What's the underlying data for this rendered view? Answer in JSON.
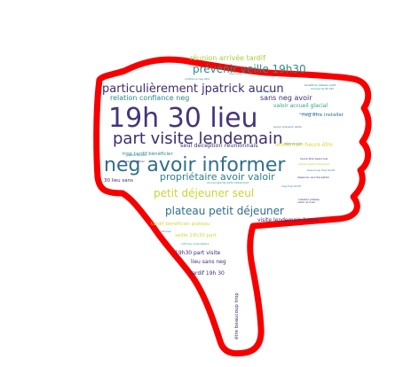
{
  "palette": {
    "outline": "#f70000",
    "dark_purple": "#3f2d6e",
    "indigo": "#45357a",
    "blue": "#34618d",
    "teal": "#2a7f8e",
    "green": "#31a37a",
    "lime": "#b4d233",
    "yellow": "#e3d330"
  },
  "words": [
    {
      "text": "19h 30 lieu",
      "color": "#45357a"
    },
    {
      "text": "neg avoir informer",
      "color": "#2f6f8c"
    },
    {
      "text": "part visite lendemain",
      "color": "#3f2d6e"
    },
    {
      "text": "particulièrement jpatrick aucun",
      "color": "#3f2d6e"
    },
    {
      "text": "prévenir veille 19h30",
      "color": "#2a8a8a"
    },
    {
      "text": "plateau petit déjeuner",
      "color": "#2d6e8d"
    },
    {
      "text": "petit déjeuner seul",
      "color": "#c7d537"
    },
    {
      "text": "propriétaire avoir valoir",
      "color": "#2a7f8e"
    },
    {
      "text": "réunion arrivée tardif",
      "color": "#a4cf3c"
    },
    {
      "text": "relation confiance neg",
      "color": "#2a8a8a"
    },
    {
      "text": "sans neg avoir",
      "color": "#3f2d6e"
    },
    {
      "text": "seul déception réunionnais",
      "color": "#3f2d6e"
    },
    {
      "text": "valoir accueil glacial",
      "color": "#31a37a"
    },
    {
      "text": "neg être installer",
      "color": "#2d6e8d"
    },
    {
      "text": "visite lendemain heure",
      "color": "#3f2d6e"
    },
    {
      "text": "trop tardif bénéficier",
      "color": "#2a8a8a"
    },
    {
      "text": "lendemain heure être",
      "color": "#e3d330"
    },
    {
      "text": "30 lieu sans",
      "color": "#3f2d6e"
    },
    {
      "text": "tardif bénéficier plateau",
      "color": "#d3d83a"
    },
    {
      "text": "19h30 part visite",
      "color": "#3f2d6e"
    },
    {
      "text": "lieu sans neg",
      "color": "#3f2d6e"
    },
    {
      "text": "veille 19h30 part",
      "color": "#d3d83a"
    },
    {
      "text": "tardif 19h 30",
      "color": "#3f2d6e"
    },
    {
      "text": "être beaucoup trop",
      "color": "#3f2d6e"
    },
    {
      "text": "confiance neg être",
      "color": "#2a8a8a"
    },
    {
      "text": "aucun prévenir veille",
      "color": "#2d6e8d"
    },
    {
      "text": "beaucoup trop tardif",
      "color": "#2a8a8a"
    },
    {
      "text": "heure être beaucoup",
      "color": "#3f2d6e"
    },
    {
      "text": "neg avoir",
      "color": "#31a37a"
    },
    {
      "text": "déjeuner seul déception",
      "color": "#3f2d6e"
    },
    {
      "text": "avoir informer",
      "color": "#2d6e8d"
    },
    {
      "text": "neg trop tardif",
      "color": "#2a8a8a"
    },
    {
      "text": "accueil glacial particulièrement",
      "color": "#2a8a8a"
    },
    {
      "text": "glacial particulièrement",
      "color": "#b4d233"
    },
    {
      "text": "arrivée tardif 19h",
      "color": "#2a8a8a"
    },
    {
      "text": "informer propriétaire",
      "color": "#31a37a"
    },
    {
      "text": "installer plateau",
      "color": "#3f2d6e"
    },
    {
      "text": "valoir accueil",
      "color": "#3f2d6e"
    },
    {
      "text": "jpatrick réunion",
      "color": "#2a7f8e"
    },
    {
      "text": "petit déjeuner",
      "color": "#2a8a8a"
    },
    {
      "text": "bénéficier plateau petit",
      "color": "#2a7f8e"
    },
    {
      "text": "neg avoir informer",
      "color": "#3f2d6e"
    },
    {
      "text": "informer",
      "color": "#2a8a8a"
    },
    {
      "text": "valoir accueil",
      "color": "#2a8a8a"
    }
  ]
}
